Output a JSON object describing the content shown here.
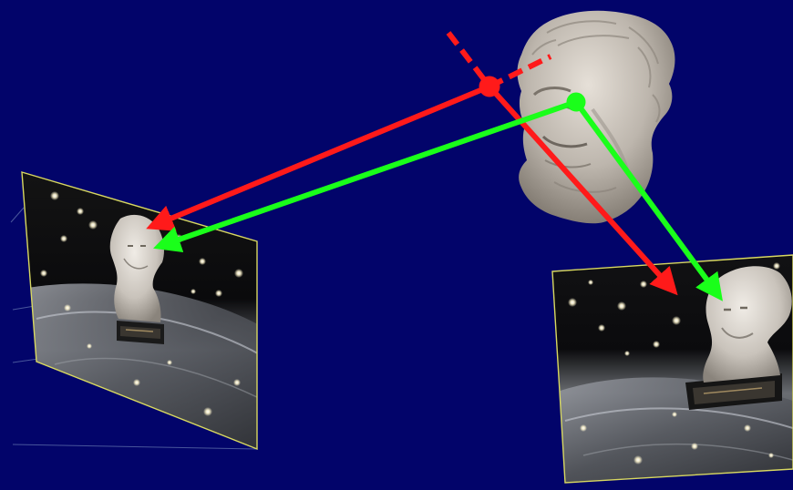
{
  "colors": {
    "background": "#02046a",
    "ray_red": "#ff1a1a",
    "ray_green": "#1aff1a",
    "frame_border": "#d8d860",
    "scaffold_line": "#5a6aa8",
    "bust_light": "#d8d2ca",
    "bust_mid": "#a9a29a",
    "bust_dark": "#6e675f",
    "photo_dark": "#0b0b0d"
  },
  "scene": {
    "bust_3d_model": "beethoven-bust",
    "left_camera_image": "bust-photo-left-view",
    "right_camera_image": "bust-photo-right-view",
    "red_point": "red-3d-point",
    "green_point": "green-3d-point",
    "red_ray_dashed": true,
    "green_ray_dashed": false
  }
}
